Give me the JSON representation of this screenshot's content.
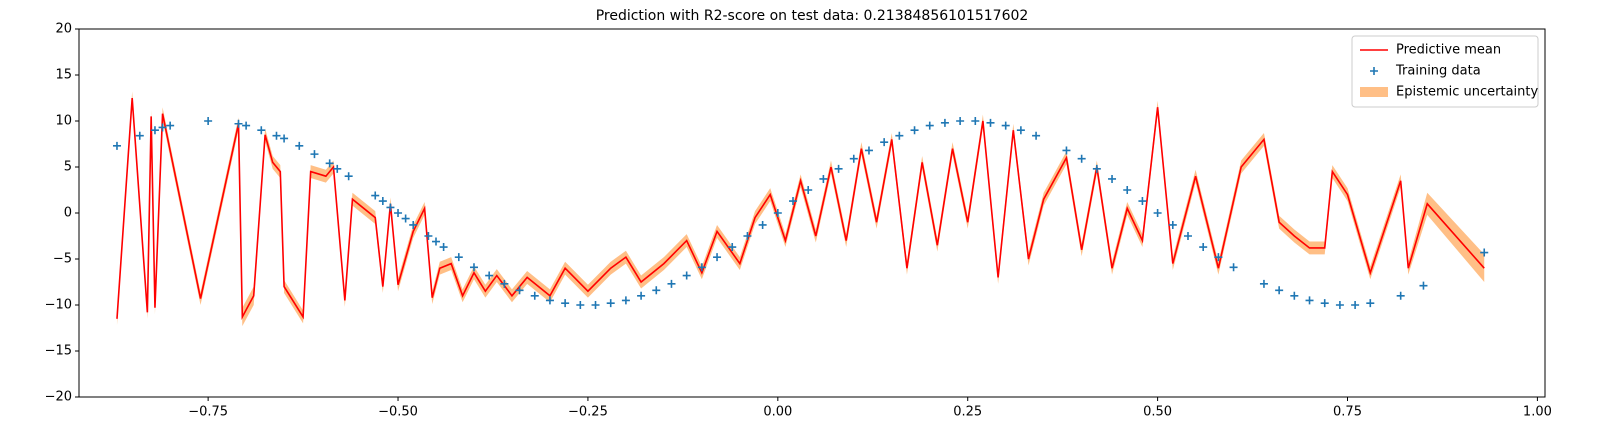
{
  "chart_data": {
    "type": "line",
    "title": "Prediction with R2-score on test data: 0.21384856101517602",
    "xlim": [
      -0.92,
      1.01
    ],
    "ylim": [
      -20,
      20
    ],
    "xticks": [
      {
        "value": -0.75,
        "label": "−0.75"
      },
      {
        "value": -0.5,
        "label": "−0.50"
      },
      {
        "value": -0.25,
        "label": "−0.25"
      },
      {
        "value": 0,
        "label": "0.00"
      },
      {
        "value": 0.25,
        "label": "0.25"
      },
      {
        "value": 0.5,
        "label": "0.50"
      },
      {
        "value": 0.75,
        "label": "0.75"
      },
      {
        "value": 1,
        "label": "1.00"
      }
    ],
    "yticks": [
      {
        "value": -20,
        "label": "−20"
      },
      {
        "value": -15,
        "label": "−15"
      },
      {
        "value": -10,
        "label": "−10"
      },
      {
        "value": -5,
        "label": "−5"
      },
      0,
      5,
      10,
      15,
      20
    ],
    "legend": "upper right",
    "series": [
      {
        "name": "Predictive mean",
        "type": "line",
        "color": "#ff0000",
        "x": [
          -0.87,
          -0.85,
          -0.83,
          -0.825,
          -0.82,
          -0.81,
          -0.76,
          -0.71,
          -0.705,
          -0.69,
          -0.675,
          -0.665,
          -0.655,
          -0.65,
          -0.625,
          -0.615,
          -0.595,
          -0.585,
          -0.57,
          -0.56,
          -0.53,
          -0.52,
          -0.51,
          -0.5,
          -0.48,
          -0.465,
          -0.455,
          -0.445,
          -0.43,
          -0.415,
          -0.4,
          -0.385,
          -0.37,
          -0.35,
          -0.33,
          -0.3,
          -0.28,
          -0.25,
          -0.22,
          -0.2,
          -0.18,
          -0.15,
          -0.12,
          -0.1,
          -0.08,
          -0.05,
          -0.03,
          -0.01,
          0.01,
          0.03,
          0.05,
          0.07,
          0.09,
          0.11,
          0.13,
          0.15,
          0.17,
          0.19,
          0.21,
          0.23,
          0.25,
          0.27,
          0.29,
          0.31,
          0.33,
          0.35,
          0.38,
          0.4,
          0.42,
          0.44,
          0.46,
          0.48,
          0.5,
          0.52,
          0.55,
          0.58,
          0.61,
          0.64,
          0.66,
          0.68,
          0.7,
          0.72,
          0.73,
          0.75,
          0.78,
          0.82,
          0.83,
          0.855,
          0.93
        ],
        "values": [
          -11.5,
          12.5,
          -10.8,
          10.5,
          -10.3,
          10.8,
          -9.3,
          9.7,
          -11.3,
          -9.0,
          8.5,
          5.5,
          4.5,
          -8.0,
          -11.3,
          4.5,
          4.0,
          5.0,
          -9.5,
          1.5,
          -0.5,
          -8.0,
          1.0,
          -7.8,
          -2.0,
          0.5,
          -9.2,
          -6.0,
          -5.5,
          -9.0,
          -6.5,
          -8.5,
          -6.8,
          -9.0,
          -7.0,
          -9.0,
          -6.0,
          -8.5,
          -6.0,
          -4.8,
          -7.5,
          -5.5,
          -3.0,
          -6.5,
          -2.0,
          -5.5,
          -0.5,
          2.0,
          -3.0,
          3.5,
          -2.5,
          5.0,
          -3.0,
          7.0,
          -1.0,
          8.0,
          -6.0,
          5.5,
          -3.5,
          7.0,
          -1.0,
          10.0,
          -7.0,
          9.0,
          -5.0,
          1.5,
          6.0,
          -4.0,
          5.0,
          -6.0,
          0.5,
          -3.0,
          11.5,
          -5.5,
          4.0,
          -6.0,
          5.0,
          8.0,
          -1.0,
          -2.5,
          -3.8,
          -3.8,
          4.5,
          2.0,
          -6.5,
          3.5,
          -6.0,
          1.0,
          -6.0
        ]
      },
      {
        "name": "Training data",
        "type": "scatter",
        "color": "#1f77b4",
        "x": [
          -0.87,
          -0.84,
          -0.82,
          -0.81,
          -0.8,
          -0.75,
          -0.71,
          -0.7,
          -0.68,
          -0.66,
          -0.65,
          -0.63,
          -0.61,
          -0.59,
          -0.58,
          -0.565,
          -0.53,
          -0.52,
          -0.51,
          -0.5,
          -0.49,
          -0.48,
          -0.46,
          -0.45,
          -0.44,
          -0.42,
          -0.4,
          -0.38,
          -0.36,
          -0.34,
          -0.32,
          -0.3,
          -0.28,
          -0.26,
          -0.24,
          -0.22,
          -0.2,
          -0.18,
          -0.16,
          -0.14,
          -0.12,
          -0.1,
          -0.08,
          -0.06,
          -0.04,
          -0.02,
          0.0,
          0.02,
          0.04,
          0.06,
          0.08,
          0.1,
          0.12,
          0.14,
          0.16,
          0.18,
          0.2,
          0.22,
          0.24,
          0.26,
          0.28,
          0.3,
          0.32,
          0.34,
          0.38,
          0.4,
          0.42,
          0.44,
          0.46,
          0.48,
          0.5,
          0.52,
          0.54,
          0.56,
          0.58,
          0.6,
          0.64,
          0.66,
          0.68,
          0.7,
          0.72,
          0.74,
          0.76,
          0.78,
          0.82,
          0.85,
          0.93
        ],
        "values": [
          7.3,
          8.4,
          9.0,
          9.3,
          9.5,
          10.0,
          9.7,
          9.5,
          9.0,
          8.4,
          8.1,
          7.3,
          6.4,
          5.4,
          4.8,
          4.0,
          1.9,
          1.3,
          0.6,
          0,
          -0.6,
          -1.3,
          -2.5,
          -3.1,
          -3.7,
          -4.8,
          -5.9,
          -6.8,
          -7.7,
          -8.4,
          -9.0,
          -9.5,
          -9.8,
          -10.0,
          -10.0,
          -9.8,
          -9.5,
          -9.0,
          -8.4,
          -7.7,
          -6.8,
          -5.9,
          -4.8,
          -3.7,
          -2.5,
          -1.3,
          0,
          1.3,
          2.5,
          3.7,
          4.8,
          5.9,
          6.8,
          7.7,
          8.4,
          9.0,
          9.5,
          9.8,
          10.0,
          10.0,
          9.8,
          9.5,
          9.0,
          8.4,
          6.8,
          5.9,
          4.8,
          3.7,
          2.5,
          1.3,
          0,
          -1.3,
          -2.5,
          -3.7,
          -4.8,
          -5.9,
          -7.7,
          -8.4,
          -9.0,
          -9.5,
          -9.8,
          -10.0,
          -10.0,
          -9.8,
          -9.0,
          -7.9,
          -4.3
        ]
      },
      {
        "name": "Epistemic uncertainty",
        "type": "band",
        "color": "#ffbf86",
        "lower": [
          -12.2,
          11.8,
          -11.5,
          9.8,
          -11.0,
          10.1,
          -10.0,
          9.0,
          -12.3,
          -10.0,
          7.8,
          4.8,
          3.8,
          -8.7,
          -12.0,
          3.8,
          3.3,
          4.3,
          -10.2,
          0.8,
          -1.2,
          -8.7,
          0.3,
          -8.5,
          -2.7,
          -0.2,
          -9.9,
          -6.7,
          -6.2,
          -9.7,
          -7.2,
          -9.2,
          -7.5,
          -9.7,
          -7.7,
          -9.7,
          -6.7,
          -9.2,
          -6.7,
          -5.5,
          -8.2,
          -6.2,
          -3.7,
          -7.2,
          -2.7,
          -6.2,
          -1.2,
          1.3,
          -3.7,
          2.8,
          -3.2,
          4.3,
          -3.7,
          6.3,
          -1.7,
          7.3,
          -6.7,
          4.8,
          -4.2,
          6.3,
          -1.7,
          9.3,
          -7.7,
          8.3,
          -5.7,
          0.8,
          5.3,
          -4.7,
          4.3,
          -6.7,
          -0.2,
          -3.7,
          10.8,
          -6.2,
          3.3,
          -6.7,
          4.3,
          7.3,
          -1.7,
          -3.2,
          -4.5,
          -4.5,
          3.8,
          1.3,
          -7.2,
          2.8,
          -6.7,
          -0.2,
          -7.5
        ],
        "upper": [
          -10.8,
          13.2,
          -10.1,
          11.2,
          -9.6,
          11.5,
          -8.6,
          10.4,
          -10.3,
          -8.0,
          9.2,
          6.2,
          5.2,
          -7.3,
          -10.6,
          5.2,
          4.7,
          5.7,
          -8.8,
          2.2,
          0.2,
          -7.3,
          1.7,
          -7.1,
          -1.3,
          1.2,
          -8.5,
          -5.3,
          -4.8,
          -8.3,
          -5.8,
          -7.8,
          -6.1,
          -8.3,
          -6.3,
          -8.3,
          -5.3,
          -7.8,
          -5.3,
          -4.1,
          -6.8,
          -4.8,
          -2.3,
          -5.8,
          -1.3,
          -4.8,
          0.2,
          2.7,
          -2.3,
          4.2,
          -1.8,
          5.7,
          -2.3,
          7.7,
          -0.3,
          8.7,
          -5.3,
          6.2,
          -2.8,
          7.7,
          -0.3,
          10.7,
          -6.3,
          9.7,
          -4.3,
          2.2,
          6.7,
          -3.3,
          5.7,
          -5.3,
          1.2,
          -2.3,
          12.2,
          -4.8,
          4.7,
          -5.3,
          5.7,
          8.7,
          -0.3,
          -1.8,
          -3.1,
          -3.1,
          5.2,
          2.7,
          -5.8,
          4.2,
          -5.3,
          2.2,
          -4.5
        ]
      }
    ]
  }
}
